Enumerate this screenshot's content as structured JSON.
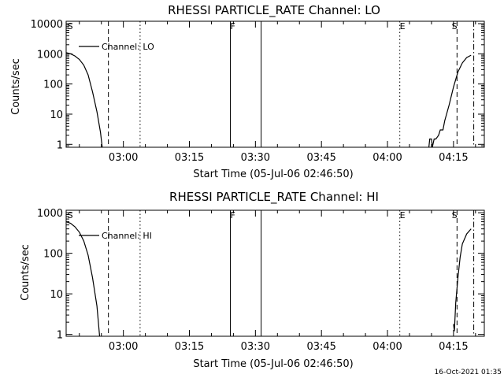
{
  "footer": {
    "timestamp": "16-Oct-2021 01:35"
  },
  "chart_data": [
    {
      "type": "line",
      "title": "RHESSI PARTICLE_RATE Channel: LO",
      "xlabel": "Start Time (05-Jul-06 02:46:50)",
      "ylabel": "Counts/sec",
      "yscale": "log",
      "xlim_min": [
        0,
        95
      ],
      "ylim": [
        0.8,
        12000
      ],
      "xtick_min": [
        13,
        28,
        43,
        58,
        73,
        88
      ],
      "xtick_labels": [
        "03:00",
        "03:15",
        "03:30",
        "03:45",
        "04:00",
        "04:15"
      ],
      "ytick_values": [
        1,
        10,
        100,
        1000,
        10000
      ],
      "ytick_labels": [
        "1",
        "10",
        "100",
        "1000",
        "10000"
      ],
      "legend": {
        "label": "Channel: LO",
        "placement": "top-left"
      },
      "markers": [
        {
          "label": "S",
          "at_min": 0.3
        },
        {
          "label": "F",
          "at_min": 37.3
        },
        {
          "label": "E",
          "at_min": 75.8
        },
        {
          "label": "S",
          "at_min": 87.6
        }
      ],
      "vlines": [
        {
          "at_min": 9.6,
          "style": "dashed"
        },
        {
          "at_min": 16.8,
          "style": "dotted"
        },
        {
          "at_min": 37.3,
          "style": "solid"
        },
        {
          "at_min": 44.3,
          "style": "solid"
        },
        {
          "at_min": 75.8,
          "style": "dotted"
        },
        {
          "at_min": 88.8,
          "style": "dashed"
        },
        {
          "at_min": 92.6,
          "style": "dashdot"
        }
      ],
      "series": [
        {
          "name": "Channel: LO",
          "segments": [
            [
              [
                0,
                1100
              ],
              [
                1,
                1000
              ],
              [
                2,
                850
              ],
              [
                3,
                650
              ],
              [
                4,
                420
              ],
              [
                5,
                200
              ],
              [
                6,
                55
              ],
              [
                7,
                12
              ],
              [
                7.8,
                2.5
              ],
              [
                8.2,
                0.8
              ]
            ],
            [
              [
                82.4,
                0.8
              ],
              [
                82.6,
                1.5
              ],
              [
                83,
                1.5
              ],
              [
                83.2,
                0.8
              ],
              [
                83.6,
                1.5
              ],
              [
                84,
                1.5
              ],
              [
                84.6,
                2
              ],
              [
                85,
                3
              ],
              [
                85.6,
                3
              ],
              [
                86,
                6
              ],
              [
                87,
                20
              ],
              [
                88,
                80
              ],
              [
                89,
                250
              ],
              [
                90,
                500
              ],
              [
                91,
                750
              ],
              [
                92,
                900
              ]
            ]
          ]
        }
      ]
    },
    {
      "type": "line",
      "title": "RHESSI PARTICLE_RATE Channel: HI",
      "xlabel": "Start Time (05-Jul-06 02:46:50)",
      "ylabel": "Counts/sec",
      "yscale": "log",
      "xlim_min": [
        0,
        95
      ],
      "ylim": [
        0.9,
        1150
      ],
      "xtick_min": [
        13,
        28,
        43,
        58,
        73,
        88
      ],
      "xtick_labels": [
        "03:00",
        "03:15",
        "03:30",
        "03:45",
        "04:00",
        "04:15"
      ],
      "ytick_values": [
        1,
        10,
        100,
        1000
      ],
      "ytick_labels": [
        "1",
        "10",
        "100",
        "1000"
      ],
      "legend": {
        "label": "Channel: HI",
        "placement": "top-left"
      },
      "markers": [
        {
          "label": "S",
          "at_min": 0.3
        },
        {
          "label": "F",
          "at_min": 37.3
        },
        {
          "label": "E",
          "at_min": 75.8
        },
        {
          "label": "S",
          "at_min": 87.6
        }
      ],
      "vlines": [
        {
          "at_min": 9.6,
          "style": "dashed"
        },
        {
          "at_min": 16.8,
          "style": "dotted"
        },
        {
          "at_min": 37.3,
          "style": "solid"
        },
        {
          "at_min": 44.3,
          "style": "solid"
        },
        {
          "at_min": 75.8,
          "style": "dotted"
        },
        {
          "at_min": 88.8,
          "style": "dashed"
        },
        {
          "at_min": 92.6,
          "style": "dashdot"
        }
      ],
      "series": [
        {
          "name": "Channel: HI",
          "segments": [
            [
              [
                0,
                600
              ],
              [
                1,
                550
              ],
              [
                2,
                450
              ],
              [
                3,
                330
              ],
              [
                4,
                200
              ],
              [
                5,
                90
              ],
              [
                6,
                25
              ],
              [
                7,
                5
              ],
              [
                7.6,
                0.9
              ]
            ],
            [
              [
                88,
                1.8
              ],
              [
                88.2,
                1.2
              ],
              [
                88.5,
                6
              ],
              [
                89,
                25
              ],
              [
                89.5,
                80
              ],
              [
                90,
                170
              ],
              [
                91,
                300
              ],
              [
                92,
                400
              ]
            ]
          ]
        }
      ]
    }
  ]
}
